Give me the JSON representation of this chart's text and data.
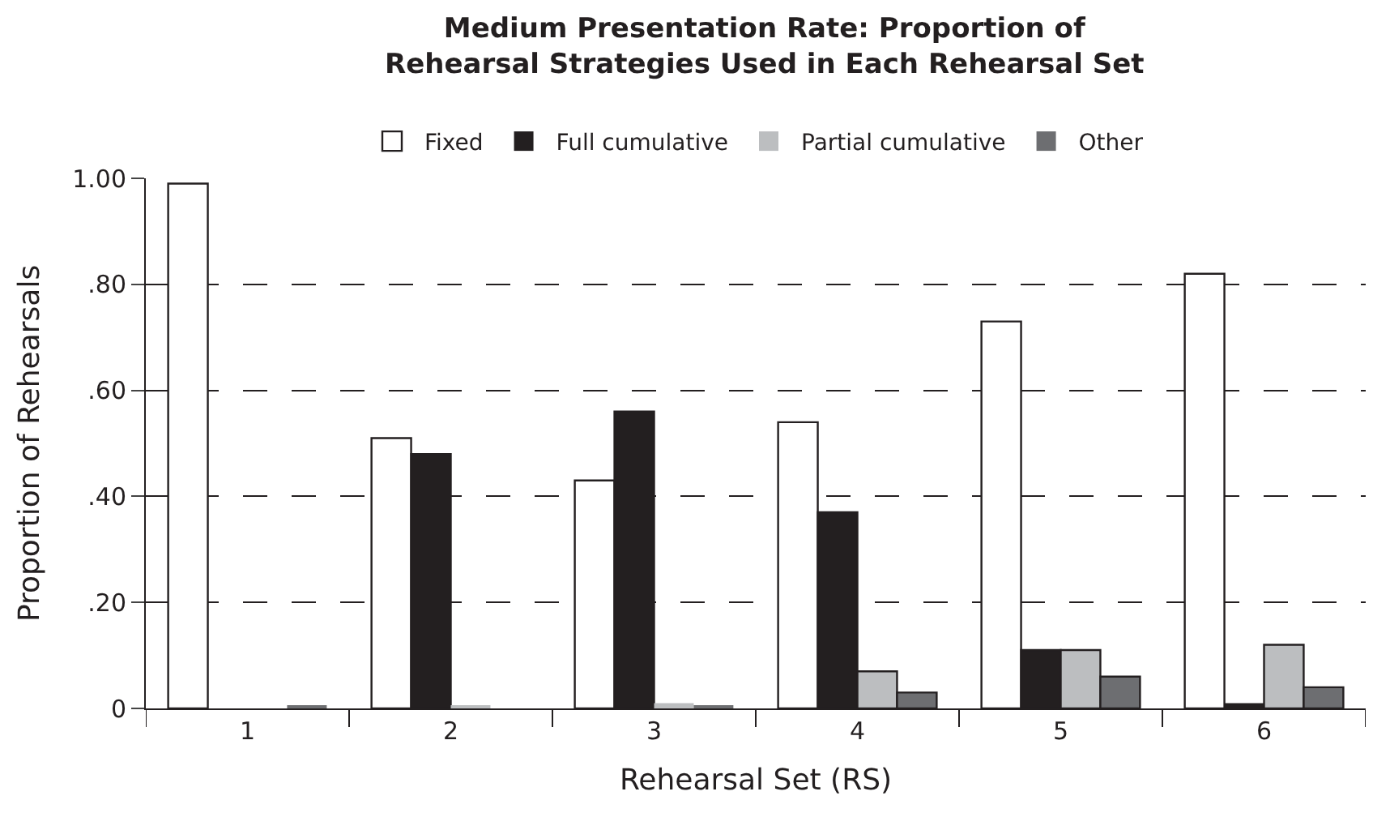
{
  "chart_data": {
    "type": "bar",
    "title": "Medium Presentation Rate: Proportion of\nRehearsal Strategies Used in Each Rehearsal Set",
    "xlabel": "Rehearsal Set (RS)",
    "ylabel": "Proportion of Rehearsals",
    "categories": [
      "1",
      "2",
      "3",
      "4",
      "5",
      "6"
    ],
    "series": [
      {
        "name": "Fixed",
        "color": "#ffffff",
        "values": [
          0.99,
          0.51,
          0.43,
          0.54,
          0.73,
          0.82
        ]
      },
      {
        "name": "Full cumulative",
        "color": "#231f20",
        "values": [
          0,
          0.48,
          0.56,
          0.37,
          0.11,
          0.01
        ]
      },
      {
        "name": "Partial cumulative",
        "color": "#bcbec0",
        "values": [
          0,
          0.005,
          0.01,
          0.07,
          0.11,
          0.12
        ]
      },
      {
        "name": "Other",
        "color": "#6d6e71",
        "values": [
          0.005,
          0,
          0.005,
          0.03,
          0.06,
          0.04
        ]
      }
    ],
    "ylim": [
      0,
      1.0
    ],
    "yticks": [
      {
        "value": 0,
        "label": "0"
      },
      {
        "value": 0.2,
        "label": ".20"
      },
      {
        "value": 0.4,
        "label": ".40"
      },
      {
        "value": 0.6,
        "label": ".60"
      },
      {
        "value": 0.8,
        "label": ".80"
      },
      {
        "value": 1.0,
        "label": "1.00"
      }
    ],
    "grid": "y",
    "legend": "top"
  }
}
